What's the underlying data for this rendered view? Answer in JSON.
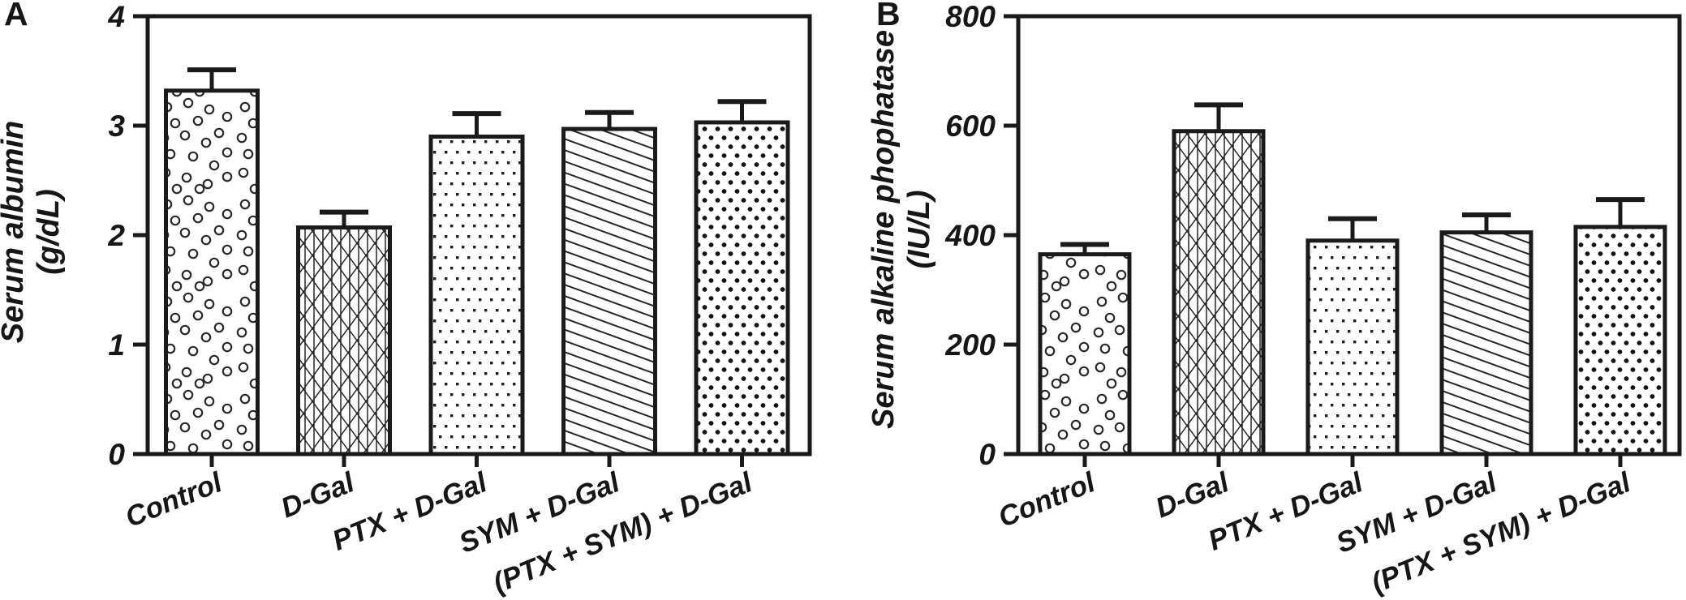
{
  "colors": {
    "ink": "#1a1a1a",
    "pattern_ink": "#262626",
    "background": "#ffffff"
  },
  "chart_data": [
    {
      "type": "bar",
      "panel_label": "A",
      "title": "",
      "xlabel": "",
      "ylabel_line1": "Serum albumin",
      "ylabel_line2": "(g/dL)",
      "ylim": [
        0,
        4
      ],
      "yticks": [
        0,
        1,
        2,
        3,
        4
      ],
      "grid": "off",
      "legend": "none",
      "error_bars": "upper SEM caps",
      "categories": [
        "Control",
        "D-Gal",
        "PTX + D-Gal",
        "SYM + D-Gal",
        "(PTX + SYM) + D-Gal"
      ],
      "values": [
        3.32,
        2.07,
        2.9,
        2.97,
        3.03
      ],
      "errors": [
        0.19,
        0.14,
        0.21,
        0.15,
        0.19
      ],
      "bar_fill_patterns": [
        "open-circles",
        "crosshatch-grid",
        "small-dots",
        "diagonal-lines",
        "large-dots"
      ]
    },
    {
      "type": "bar",
      "panel_label": "B",
      "title": "",
      "xlabel": "",
      "ylabel_line1": "Serum alkaline phophatase",
      "ylabel_line2": "(IU/L)",
      "ylim": [
        0,
        800
      ],
      "yticks": [
        0,
        200,
        400,
        600,
        800
      ],
      "grid": "off",
      "legend": "none",
      "error_bars": "upper SEM caps",
      "categories": [
        "Control",
        "D-Gal",
        "PTX + D-Gal",
        "SYM + D-Gal",
        "(PTX + SYM) + D-Gal"
      ],
      "values": [
        365,
        590,
        390,
        405,
        415
      ],
      "errors": [
        18,
        48,
        40,
        32,
        50
      ],
      "bar_fill_patterns": [
        "open-circles",
        "crosshatch-grid",
        "small-dots",
        "diagonal-lines",
        "large-dots"
      ]
    }
  ]
}
